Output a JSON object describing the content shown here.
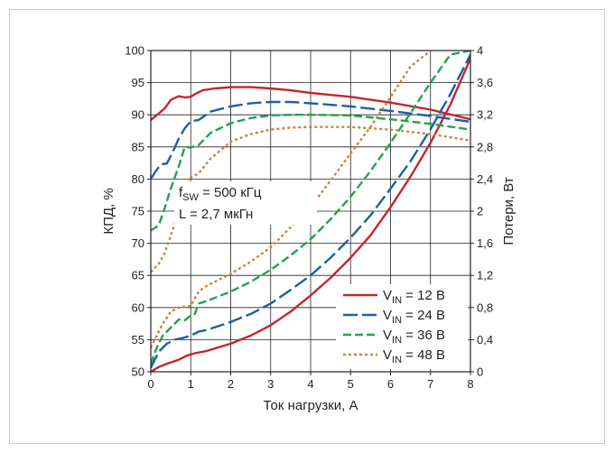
{
  "chart_data": {
    "type": "line",
    "xlabel": "Ток нагрузки, А",
    "ylabel": "КПД, %",
    "y2label": "Потери, Вт",
    "xlim": [
      0,
      8
    ],
    "ylim": [
      50,
      100
    ],
    "y2lim": [
      0,
      4
    ],
    "grid": true,
    "legend_position": "bottom-right",
    "annotation": {
      "line1_main": "f",
      "line1_sub": "SW",
      "line1_rest": " = 500 кГц",
      "line2": "L = 2,7 мкГн"
    },
    "x_ticks": [
      {
        "v": 0,
        "label": "0"
      },
      {
        "v": 1,
        "label": "1"
      },
      {
        "v": 2,
        "label": "2"
      },
      {
        "v": 3,
        "label": "3"
      },
      {
        "v": 4,
        "label": "4"
      },
      {
        "v": 5,
        "label": "5"
      },
      {
        "v": 6,
        "label": "6"
      },
      {
        "v": 7,
        "label": "7"
      },
      {
        "v": 8,
        "label": "8"
      }
    ],
    "y_ticks": [
      {
        "v": 50,
        "label": "50"
      },
      {
        "v": 55,
        "label": "55"
      },
      {
        "v": 60,
        "label": "60"
      },
      {
        "v": 65,
        "label": "65"
      },
      {
        "v": 70,
        "label": "70"
      },
      {
        "v": 75,
        "label": "75"
      },
      {
        "v": 80,
        "label": "80"
      },
      {
        "v": 85,
        "label": "85"
      },
      {
        "v": 90,
        "label": "90"
      },
      {
        "v": 95,
        "label": "95"
      },
      {
        "v": 100,
        "label": "100"
      }
    ],
    "y2_ticks": [
      {
        "v": 0,
        "label": "0"
      },
      {
        "v": 0.4,
        "label": "0,4"
      },
      {
        "v": 0.8,
        "label": "0,8"
      },
      {
        "v": 1.2,
        "label": "1,2"
      },
      {
        "v": 1.6,
        "label": "1,6"
      },
      {
        "v": 2.0,
        "label": "2"
      },
      {
        "v": 2.4,
        "label": "2,4"
      },
      {
        "v": 2.8,
        "label": "2,8"
      },
      {
        "v": 3.2,
        "label": "3,2"
      },
      {
        "v": 3.6,
        "label": "3,6"
      },
      {
        "v": 4.0,
        "label": "4"
      }
    ],
    "series": [
      {
        "name_main": "V",
        "name_sub": "IN",
        "name_rest": " = 12 В",
        "color": "#c1272d",
        "dash": "solid",
        "efficiency": [
          [
            0,
            89.2
          ],
          [
            0.2,
            90.2
          ],
          [
            0.35,
            91
          ],
          [
            0.5,
            92.3
          ],
          [
            0.7,
            92.9
          ],
          [
            0.85,
            92.7
          ],
          [
            1.0,
            92.8
          ],
          [
            1.1,
            93.2
          ],
          [
            1.3,
            93.8
          ],
          [
            1.6,
            94.1
          ],
          [
            2.0,
            94.3
          ],
          [
            2.5,
            94.3
          ],
          [
            3,
            94.1
          ],
          [
            3.5,
            93.8
          ],
          [
            4,
            93.4
          ],
          [
            5,
            92.8
          ],
          [
            6,
            91.9
          ],
          [
            7,
            90.8
          ],
          [
            8,
            89.3
          ]
        ],
        "losses": [
          [
            0,
            0
          ],
          [
            0.2,
            0.06
          ],
          [
            0.4,
            0.1
          ],
          [
            0.7,
            0.15
          ],
          [
            0.9,
            0.2
          ],
          [
            1.1,
            0.23
          ],
          [
            1.4,
            0.26
          ],
          [
            2,
            0.35
          ],
          [
            2.5,
            0.45
          ],
          [
            3,
            0.58
          ],
          [
            3.5,
            0.75
          ],
          [
            4,
            0.95
          ],
          [
            4.5,
            1.17
          ],
          [
            5,
            1.42
          ],
          [
            5.5,
            1.7
          ],
          [
            6,
            2.05
          ],
          [
            6.5,
            2.43
          ],
          [
            7,
            2.85
          ],
          [
            7.5,
            3.33
          ],
          [
            8,
            3.9
          ]
        ]
      },
      {
        "name_main": "V",
        "name_sub": "IN",
        "name_rest": " = 24 В",
        "color": "#1b5fa8",
        "dash": "long",
        "efficiency": [
          [
            0,
            80
          ],
          [
            0.1,
            81
          ],
          [
            0.25,
            82.3
          ],
          [
            0.4,
            82.4
          ],
          [
            0.55,
            84.2
          ],
          [
            0.7,
            86.3
          ],
          [
            0.85,
            87.9
          ],
          [
            1.0,
            89
          ],
          [
            1.2,
            89.2
          ],
          [
            1.5,
            90.5
          ],
          [
            2,
            91.3
          ],
          [
            2.5,
            91.8
          ],
          [
            3,
            92
          ],
          [
            3.5,
            92
          ],
          [
            4,
            91.8
          ],
          [
            5,
            91.3
          ],
          [
            6,
            90.6
          ],
          [
            7,
            89.8
          ],
          [
            8,
            88.9
          ]
        ],
        "losses": [
          [
            0,
            0.05
          ],
          [
            0.2,
            0.25
          ],
          [
            0.4,
            0.35
          ],
          [
            0.6,
            0.4
          ],
          [
            0.8,
            0.42
          ],
          [
            1.0,
            0.45
          ],
          [
            1.2,
            0.5
          ],
          [
            1.4,
            0.52
          ],
          [
            2,
            0.62
          ],
          [
            2.5,
            0.72
          ],
          [
            3,
            0.85
          ],
          [
            3.5,
            1.02
          ],
          [
            4,
            1.2
          ],
          [
            4.5,
            1.42
          ],
          [
            5,
            1.67
          ],
          [
            5.5,
            1.95
          ],
          [
            6,
            2.28
          ],
          [
            6.5,
            2.62
          ],
          [
            7,
            3.02
          ],
          [
            7.5,
            3.46
          ],
          [
            8,
            3.95
          ]
        ]
      },
      {
        "name_main": "V",
        "name_sub": "IN",
        "name_rest": " = 36 В",
        "color": "#1ea54b",
        "dash": "medium",
        "efficiency": [
          [
            0,
            72
          ],
          [
            0.2,
            72.8
          ],
          [
            0.35,
            75.5
          ],
          [
            0.5,
            78.5
          ],
          [
            0.7,
            82
          ],
          [
            0.85,
            85
          ],
          [
            1.0,
            84.9
          ],
          [
            1.2,
            85.3
          ],
          [
            1.5,
            87.2
          ],
          [
            2,
            88.7
          ],
          [
            2.5,
            89.5
          ],
          [
            3,
            89.9
          ],
          [
            3.5,
            90
          ],
          [
            4,
            90
          ],
          [
            5,
            89.9
          ],
          [
            6,
            89.3
          ],
          [
            7,
            88.6
          ],
          [
            8,
            87.7
          ]
        ],
        "losses": [
          [
            0,
            0.1
          ],
          [
            0.15,
            0.3
          ],
          [
            0.3,
            0.45
          ],
          [
            0.5,
            0.55
          ],
          [
            0.7,
            0.65
          ],
          [
            0.85,
            0.64
          ],
          [
            1.0,
            0.7
          ],
          [
            1.1,
            0.72
          ],
          [
            1.2,
            0.85
          ],
          [
            1.4,
            0.88
          ],
          [
            2,
            1.0
          ],
          [
            2.5,
            1.12
          ],
          [
            3,
            1.27
          ],
          [
            3.5,
            1.45
          ],
          [
            4,
            1.65
          ],
          [
            4.5,
            1.9
          ],
          [
            5,
            2.18
          ],
          [
            5.5,
            2.5
          ],
          [
            6,
            2.85
          ],
          [
            6.5,
            3.22
          ],
          [
            7,
            3.6
          ],
          [
            7.5,
            3.95
          ],
          [
            8,
            4.0
          ]
        ]
      },
      {
        "name_main": "V",
        "name_sub": "IN",
        "name_rest": " = 48 В",
        "color": "#c8843a",
        "dash": "dotted",
        "efficiency": [
          [
            0,
            65.5
          ],
          [
            0.2,
            66.8
          ],
          [
            0.35,
            68.5
          ],
          [
            0.5,
            71.2
          ],
          [
            0.65,
            74
          ],
          [
            0.8,
            77.5
          ],
          [
            1.0,
            80.2
          ],
          [
            1.2,
            80.9
          ],
          [
            1.5,
            83.2
          ],
          [
            2,
            85.8
          ],
          [
            2.5,
            87
          ],
          [
            3,
            87.7
          ],
          [
            3.5,
            88
          ],
          [
            4,
            88.1
          ],
          [
            5,
            88.1
          ],
          [
            6,
            87.7
          ],
          [
            7,
            87
          ],
          [
            8,
            86
          ]
        ],
        "losses": [
          [
            0,
            0.3
          ],
          [
            0.15,
            0.45
          ],
          [
            0.3,
            0.6
          ],
          [
            0.5,
            0.75
          ],
          [
            0.7,
            0.8
          ],
          [
            1.0,
            0.82
          ],
          [
            1.2,
            1.0
          ],
          [
            1.4,
            1.07
          ],
          [
            2,
            1.22
          ],
          [
            2.5,
            1.37
          ],
          [
            3,
            1.55
          ],
          [
            3.5,
            1.8
          ],
          [
            4,
            2.05
          ],
          [
            4.5,
            2.38
          ],
          [
            5,
            2.72
          ],
          [
            5.5,
            3.05
          ],
          [
            6,
            3.42
          ],
          [
            6.5,
            3.8
          ],
          [
            7,
            4.0
          ]
        ]
      }
    ]
  }
}
